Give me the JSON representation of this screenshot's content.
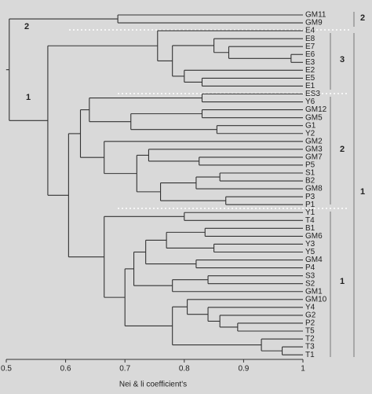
{
  "chart_data": {
    "type": "dendrogram",
    "x_label": "Nei & li coefficient's",
    "xlim": [
      0.5,
      1
    ],
    "xticks": [
      0.5,
      0.6,
      0.7,
      0.8,
      0.9,
      1
    ],
    "group_labels": {
      "left_outer": "2",
      "left_inner": "1",
      "right_e": "3",
      "right_mid": "2",
      "right_low": "1",
      "far_top": "2",
      "far_main": "1"
    },
    "tree": {
      "height": 0.505,
      "children": [
        {
          "height": 0.688,
          "children": [
            {
              "label": "GM11"
            },
            {
              "label": "GM9"
            }
          ]
        },
        {
          "height": 0.57,
          "children": [
            {
              "height": 0.755,
              "children": [
                {
                  "label": "E4"
                },
                {
                  "height": 0.78,
                  "children": [
                    {
                      "height": 0.85,
                      "children": [
                        {
                          "label": "E8"
                        },
                        {
                          "height": 0.875,
                          "children": [
                            {
                              "label": "E7"
                            },
                            {
                              "height": 0.98,
                              "children": [
                                {
                                  "label": "E6"
                                },
                                {
                                  "label": "E3"
                                }
                              ]
                            }
                          ]
                        }
                      ]
                    },
                    {
                      "height": 0.8,
                      "children": [
                        {
                          "label": "E2"
                        },
                        {
                          "height": 0.83,
                          "children": [
                            {
                              "label": "E5"
                            },
                            {
                              "label": "E1"
                            }
                          ]
                        }
                      ]
                    }
                  ]
                }
              ]
            },
            {
              "height": 0.605,
              "children": [
                {
                  "height": 0.625,
                  "children": [
                    {
                      "height": 0.64,
                      "children": [
                        {
                          "height": 0.83,
                          "children": [
                            {
                              "label": "ES3"
                            },
                            {
                              "label": "Y6"
                            }
                          ]
                        },
                        {
                          "height": 0.71,
                          "children": [
                            {
                              "height": 0.83,
                              "children": [
                                {
                                  "label": "GM12"
                                },
                                {
                                  "label": "GM5"
                                }
                              ]
                            },
                            {
                              "height": 0.855,
                              "children": [
                                {
                                  "label": "G1"
                                },
                                {
                                  "label": "Y2"
                                }
                              ]
                            }
                          ]
                        }
                      ]
                    },
                    {
                      "height": 0.665,
                      "children": [
                        {
                          "label": "GM2"
                        },
                        {
                          "height": 0.72,
                          "children": [
                            {
                              "height": 0.74,
                              "children": [
                                {
                                  "label": "GM3"
                                },
                                {
                                  "height": 0.825,
                                  "children": [
                                    {
                                      "label": "GM7"
                                    },
                                    {
                                      "label": "P5"
                                    }
                                  ]
                                }
                              ]
                            },
                            {
                              "height": 0.76,
                              "children": [
                                {
                                  "height": 0.82,
                                  "children": [
                                    {
                                      "height": 0.86,
                                      "children": [
                                        {
                                          "label": "S1"
                                        },
                                        {
                                          "label": "B2"
                                        }
                                      ]
                                    },
                                    {
                                      "label": "GM8"
                                    }
                                  ]
                                },
                                {
                                  "height": 0.87,
                                  "children": [
                                    {
                                      "label": "P3"
                                    },
                                    {
                                      "label": "P1"
                                    }
                                  ]
                                }
                              ]
                            }
                          ]
                        }
                      ]
                    }
                  ]
                },
                {
                  "height": 0.665,
                  "children": [
                    {
                      "height": 0.8,
                      "children": [
                        {
                          "label": "Y1"
                        },
                        {
                          "label": "T4"
                        }
                      ]
                    },
                    {
                      "height": 0.7,
                      "children": [
                        {
                          "height": 0.715,
                          "children": [
                            {
                              "height": 0.735,
                              "children": [
                                {
                                  "height": 0.77,
                                  "children": [
                                    {
                                      "height": 0.835,
                                      "children": [
                                        {
                                          "label": "B1"
                                        },
                                        {
                                          "label": "GM6"
                                        }
                                      ]
                                    },
                                    {
                                      "height": 0.85,
                                      "children": [
                                        {
                                          "label": "Y3"
                                        },
                                        {
                                          "label": "Y5"
                                        }
                                      ]
                                    }
                                  ]
                                },
                                {
                                  "height": 0.82,
                                  "children": [
                                    {
                                      "label": "GM4"
                                    },
                                    {
                                      "label": "P4"
                                    }
                                  ]
                                }
                              ]
                            },
                            {
                              "height": 0.78,
                              "children": [
                                {
                                  "height": 0.84,
                                  "children": [
                                    {
                                      "label": "S3"
                                    },
                                    {
                                      "label": "S2"
                                    }
                                  ]
                                },
                                {
                                  "label": "GM1"
                                }
                              ]
                            }
                          ]
                        },
                        {
                          "height": 0.78,
                          "children": [
                            {
                              "height": 0.805,
                              "children": [
                                {
                                  "label": "GM10"
                                },
                                {
                                  "height": 0.84,
                                  "children": [
                                    {
                                      "label": "Y4"
                                    },
                                    {
                                      "height": 0.86,
                                      "children": [
                                        {
                                          "label": "G2"
                                        },
                                        {
                                          "height": 0.89,
                                          "children": [
                                            {
                                              "label": "P2"
                                            },
                                            {
                                              "label": "T5"
                                            }
                                          ]
                                        }
                                      ]
                                    }
                                  ]
                                }
                              ]
                            },
                            {
                              "height": 0.93,
                              "children": [
                                {
                                  "label": "T2"
                                },
                                {
                                  "height": 0.965,
                                  "children": [
                                    {
                                      "label": "T3"
                                    },
                                    {
                                      "label": "T1"
                                    }
                                  ]
                                }
                              ]
                            }
                          ]
                        }
                      ]
                    }
                  ]
                }
              ]
            }
          ]
        }
      ]
    }
  }
}
